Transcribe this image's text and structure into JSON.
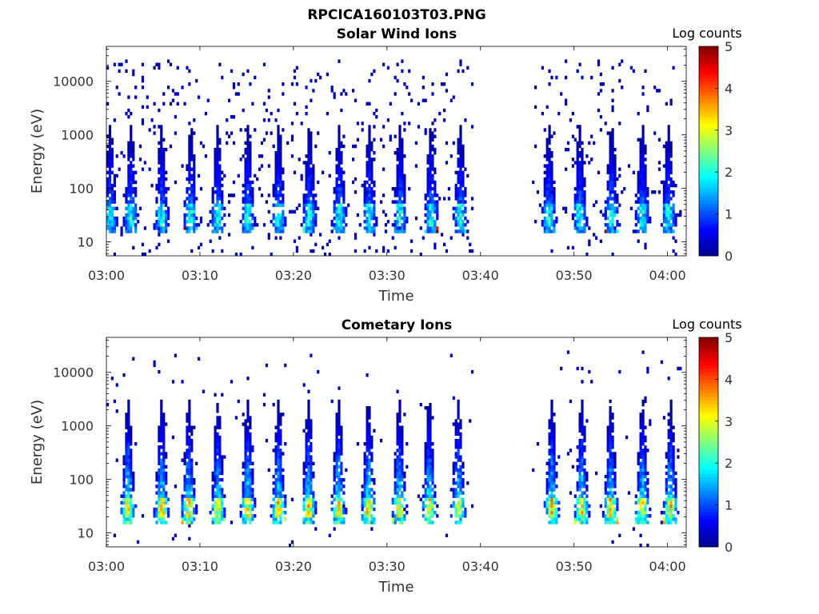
{
  "figure_title": "RPCICA160103T03.PNG",
  "chart_data": [
    {
      "type": "heatmap",
      "title": "Solar Wind Ions",
      "xlabel": "Time",
      "ylabel": "Energy (eV)",
      "colorbar_label": "Log counts",
      "x_ticks": [
        "03:00",
        "03:10",
        "03:20",
        "03:30",
        "03:40",
        "03:50",
        "04:00"
      ],
      "x_range_minutes": [
        0,
        62
      ],
      "y_ticks": [
        "10",
        "100",
        "1000",
        "10000"
      ],
      "y_range_eV": [
        5.5,
        45000
      ],
      "y_scale": "log",
      "colorbar_ticks": [
        "0",
        "1",
        "2",
        "3",
        "4",
        "5"
      ],
      "colorbar_range": [
        0,
        5
      ],
      "data_gap_minutes": [
        39.2,
        45.5
      ],
      "bursts_minutes": [
        0.3,
        2.5,
        5.8,
        8.9,
        11.8,
        15.0,
        18.3,
        21.6,
        24.8,
        28.0,
        31.3,
        34.6,
        37.7,
        47.2,
        50.5,
        53.9,
        57.2,
        60.0
      ],
      "features": {
        "burst_peak_log_counts": 2.2,
        "burst_core_energy_eV": [
          20,
          55
        ],
        "burst_max_energy_eV": 1500,
        "background_max_energy_eV": 25000
      }
    },
    {
      "type": "heatmap",
      "title": "Cometary Ions",
      "xlabel": "Time",
      "ylabel": "Energy (eV)",
      "colorbar_label": "Log counts",
      "x_ticks": [
        "03:00",
        "03:10",
        "03:20",
        "03:30",
        "03:40",
        "03:50",
        "04:00"
      ],
      "x_range_minutes": [
        0,
        62
      ],
      "y_ticks": [
        "10",
        "100",
        "1000",
        "10000"
      ],
      "y_range_eV": [
        5.5,
        45000
      ],
      "y_scale": "log",
      "colorbar_ticks": [
        "0",
        "1",
        "2",
        "3",
        "4",
        "5"
      ],
      "colorbar_range": [
        0,
        5
      ],
      "data_gap_minutes": [
        39.2,
        45.5
      ],
      "bursts_minutes": [
        2.2,
        5.8,
        8.7,
        11.8,
        15.0,
        18.3,
        21.5,
        24.7,
        27.9,
        31.2,
        34.4,
        37.5,
        47.5,
        50.7,
        53.8,
        57.2,
        60.2
      ],
      "features": {
        "burst_peak_log_counts": 3.6,
        "burst_core_energy_eV": [
          20,
          45
        ],
        "burst_max_energy_eV": 3000,
        "background_max_energy_eV": 25000
      }
    }
  ],
  "colormap": [
    "#00008f",
    "#0000ff",
    "#0080ff",
    "#00ffff",
    "#80ff80",
    "#ffff00",
    "#ff8000",
    "#ff0000",
    "#800000"
  ]
}
